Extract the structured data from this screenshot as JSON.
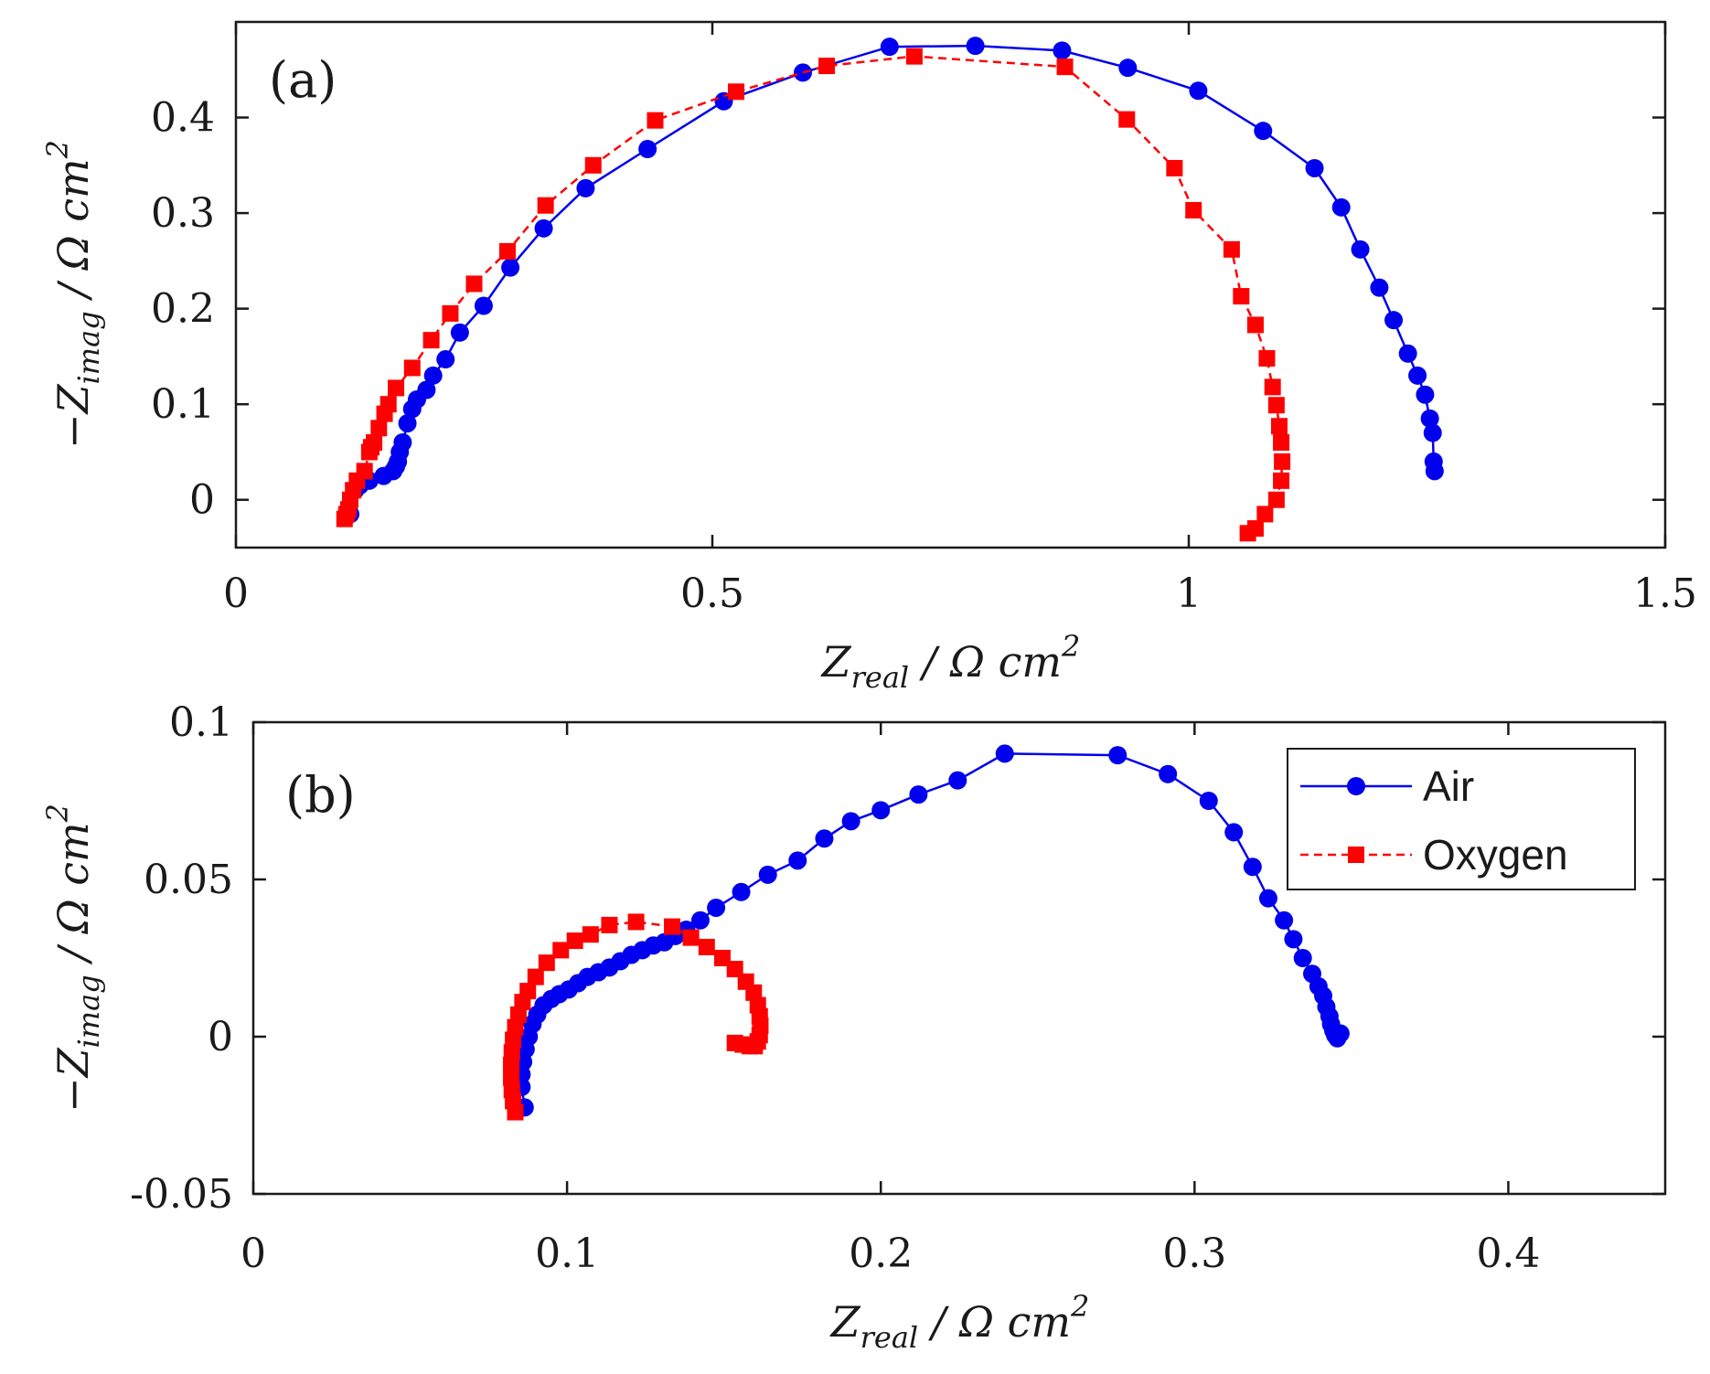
{
  "colors": {
    "air": "#0000ee",
    "oxygen": "#ff0000",
    "axis": "#1a1a1a"
  },
  "legend": {
    "entries": [
      {
        "label": "Air",
        "color": "#0000ee",
        "marker": "circle",
        "line": "solid"
      },
      {
        "label": "Oxygen",
        "color": "#ff0000",
        "marker": "square",
        "line": "dashed"
      }
    ]
  },
  "chart_data": [
    {
      "type": "scatter",
      "panel_label": "(a)",
      "xlabel_main": "Z",
      "xlabel_sub": "real",
      "xlabel_unit": " / Ω cm",
      "xlabel_sup": "2",
      "ylabel_prefix": "−Z",
      "ylabel_sub": "imag",
      "ylabel_unit": " / Ω cm",
      "ylabel_sup": "2",
      "xlim": [
        0,
        1.5
      ],
      "ylim": [
        -0.05,
        0.5
      ],
      "xticks": [
        0,
        0.5,
        1,
        1.5
      ],
      "xtick_labels": [
        "0",
        "0.5",
        "1",
        "1.5"
      ],
      "yticks": [
        0,
        0.1,
        0.2,
        0.3,
        0.4
      ],
      "ytick_labels": [
        "0",
        "0.1",
        "0.2",
        "0.3",
        "0.4"
      ],
      "legend": false,
      "series": [
        {
          "name": "Air",
          "color": "#0000ee",
          "marker": "circle",
          "line": "solid",
          "x": [
            0.12,
            0.125,
            0.13,
            0.14,
            0.155,
            0.165,
            0.168,
            0.17,
            0.172,
            0.175,
            0.18,
            0.185,
            0.19,
            0.2,
            0.207,
            0.22,
            0.235,
            0.26,
            0.288,
            0.323,
            0.367,
            0.432,
            0.512,
            0.595,
            0.686,
            0.776,
            0.867,
            0.936,
            1.01,
            1.078,
            1.132,
            1.16,
            1.18,
            1.2,
            1.215,
            1.23,
            1.24,
            1.248,
            1.253,
            1.256,
            1.257,
            1.258
          ],
          "y": [
            -0.015,
            0.01,
            0.015,
            0.02,
            0.025,
            0.03,
            0.035,
            0.04,
            0.05,
            0.06,
            0.08,
            0.095,
            0.105,
            0.115,
            0.13,
            0.147,
            0.175,
            0.203,
            0.243,
            0.284,
            0.326,
            0.367,
            0.417,
            0.447,
            0.474,
            0.475,
            0.47,
            0.452,
            0.428,
            0.386,
            0.347,
            0.306,
            0.262,
            0.222,
            0.188,
            0.153,
            0.13,
            0.11,
            0.085,
            0.07,
            0.04,
            0.03
          ]
        },
        {
          "name": "Oxygen",
          "color": "#ff0000",
          "marker": "square",
          "line": "dashed",
          "x": [
            0.114,
            0.116,
            0.118,
            0.12,
            0.123,
            0.127,
            0.135,
            0.14,
            0.142,
            0.145,
            0.15,
            0.156,
            0.16,
            0.168,
            0.185,
            0.205,
            0.225,
            0.25,
            0.285,
            0.325,
            0.375,
            0.44,
            0.525,
            0.62,
            0.712,
            0.87,
            0.935,
            0.985,
            1.005,
            1.045,
            1.055,
            1.07,
            1.082,
            1.088,
            1.092,
            1.095,
            1.097,
            1.098,
            1.097,
            1.092,
            1.08,
            1.07,
            1.062
          ],
          "y": [
            -0.02,
            -0.015,
            -0.01,
            0.0,
            0.01,
            0.02,
            0.03,
            0.05,
            0.055,
            0.06,
            0.075,
            0.09,
            0.1,
            0.117,
            0.138,
            0.167,
            0.195,
            0.226,
            0.26,
            0.308,
            0.35,
            0.397,
            0.427,
            0.454,
            0.464,
            0.453,
            0.398,
            0.347,
            0.303,
            0.262,
            0.213,
            0.183,
            0.148,
            0.118,
            0.099,
            0.077,
            0.06,
            0.04,
            0.02,
            0.0,
            -0.015,
            -0.03,
            -0.035
          ]
        }
      ]
    },
    {
      "type": "scatter",
      "panel_label": "(b)",
      "xlabel_main": "Z",
      "xlabel_sub": "real",
      "xlabel_unit": " / Ω cm",
      "xlabel_sup": "2",
      "ylabel_prefix": "−Z",
      "ylabel_sub": "imag",
      "ylabel_unit": " / Ω cm",
      "ylabel_sup": "2",
      "xlim": [
        0,
        0.45
      ],
      "ylim": [
        -0.05,
        0.1
      ],
      "xticks": [
        0,
        0.1,
        0.2,
        0.3,
        0.4
      ],
      "xtick_labels": [
        "0",
        "0.1",
        "0.2",
        "0.3",
        "0.4"
      ],
      "yticks": [
        -0.05,
        0,
        0.05,
        0.1
      ],
      "ytick_labels": [
        "-0.05",
        "0",
        "0.05",
        "0.1"
      ],
      "legend": true,
      "legend_position": "top-right",
      "series": [
        {
          "name": "Air",
          "color": "#0000ee",
          "marker": "circle",
          "line": "solid",
          "x": [
            0.0865,
            0.0855,
            0.0855,
            0.086,
            0.0868,
            0.0878,
            0.089,
            0.0905,
            0.0925,
            0.095,
            0.0975,
            0.1005,
            0.1035,
            0.1065,
            0.11,
            0.1135,
            0.117,
            0.1205,
            0.124,
            0.1275,
            0.131,
            0.1345,
            0.138,
            0.1425,
            0.1475,
            0.1555,
            0.164,
            0.1735,
            0.182,
            0.1905,
            0.2,
            0.212,
            0.2245,
            0.2395,
            0.2755,
            0.2915,
            0.3045,
            0.3125,
            0.3185,
            0.3235,
            0.3285,
            0.3315,
            0.3345,
            0.3375,
            0.3395,
            0.341,
            0.342,
            0.343,
            0.3435,
            0.3442,
            0.3448,
            0.3455,
            0.3465
          ],
          "y": [
            -0.0225,
            -0.016,
            -0.012,
            -0.008,
            -0.004,
            0.0,
            0.004,
            0.007,
            0.01,
            0.012,
            0.0135,
            0.015,
            0.017,
            0.019,
            0.0205,
            0.022,
            0.024,
            0.026,
            0.0275,
            0.029,
            0.03,
            0.032,
            0.034,
            0.037,
            0.041,
            0.046,
            0.0515,
            0.056,
            0.063,
            0.0685,
            0.072,
            0.077,
            0.0815,
            0.09,
            0.0895,
            0.0835,
            0.075,
            0.065,
            0.054,
            0.044,
            0.037,
            0.031,
            0.025,
            0.02,
            0.016,
            0.013,
            0.0095,
            0.0065,
            0.004,
            0.002,
            0.0005,
            -0.0005,
            0.001
          ]
        },
        {
          "name": "Oxygen",
          "color": "#ff0000",
          "marker": "square",
          "line": "dashed",
          "x": [
            0.0835,
            0.0828,
            0.0824,
            0.0822,
            0.0822,
            0.0824,
            0.0828,
            0.0835,
            0.0845,
            0.0858,
            0.0875,
            0.09,
            0.0935,
            0.098,
            0.1025,
            0.1075,
            0.1135,
            0.122,
            0.1335,
            0.1395,
            0.1445,
            0.1495,
            0.1535,
            0.157,
            0.1595,
            0.1608,
            0.1614,
            0.1616,
            0.1614,
            0.1608,
            0.1598,
            0.1582,
            0.156,
            0.1535
          ],
          "y": [
            -0.024,
            -0.0205,
            -0.017,
            -0.013,
            -0.009,
            -0.005,
            -0.001,
            0.003,
            0.007,
            0.011,
            0.0145,
            0.019,
            0.0235,
            0.0275,
            0.0305,
            0.0325,
            0.0355,
            0.0365,
            0.035,
            0.0315,
            0.0285,
            0.025,
            0.0215,
            0.0175,
            0.014,
            0.01,
            0.0065,
            0.0035,
            0.0005,
            -0.0015,
            -0.003,
            -0.003,
            -0.0025,
            -0.002
          ]
        }
      ]
    }
  ]
}
